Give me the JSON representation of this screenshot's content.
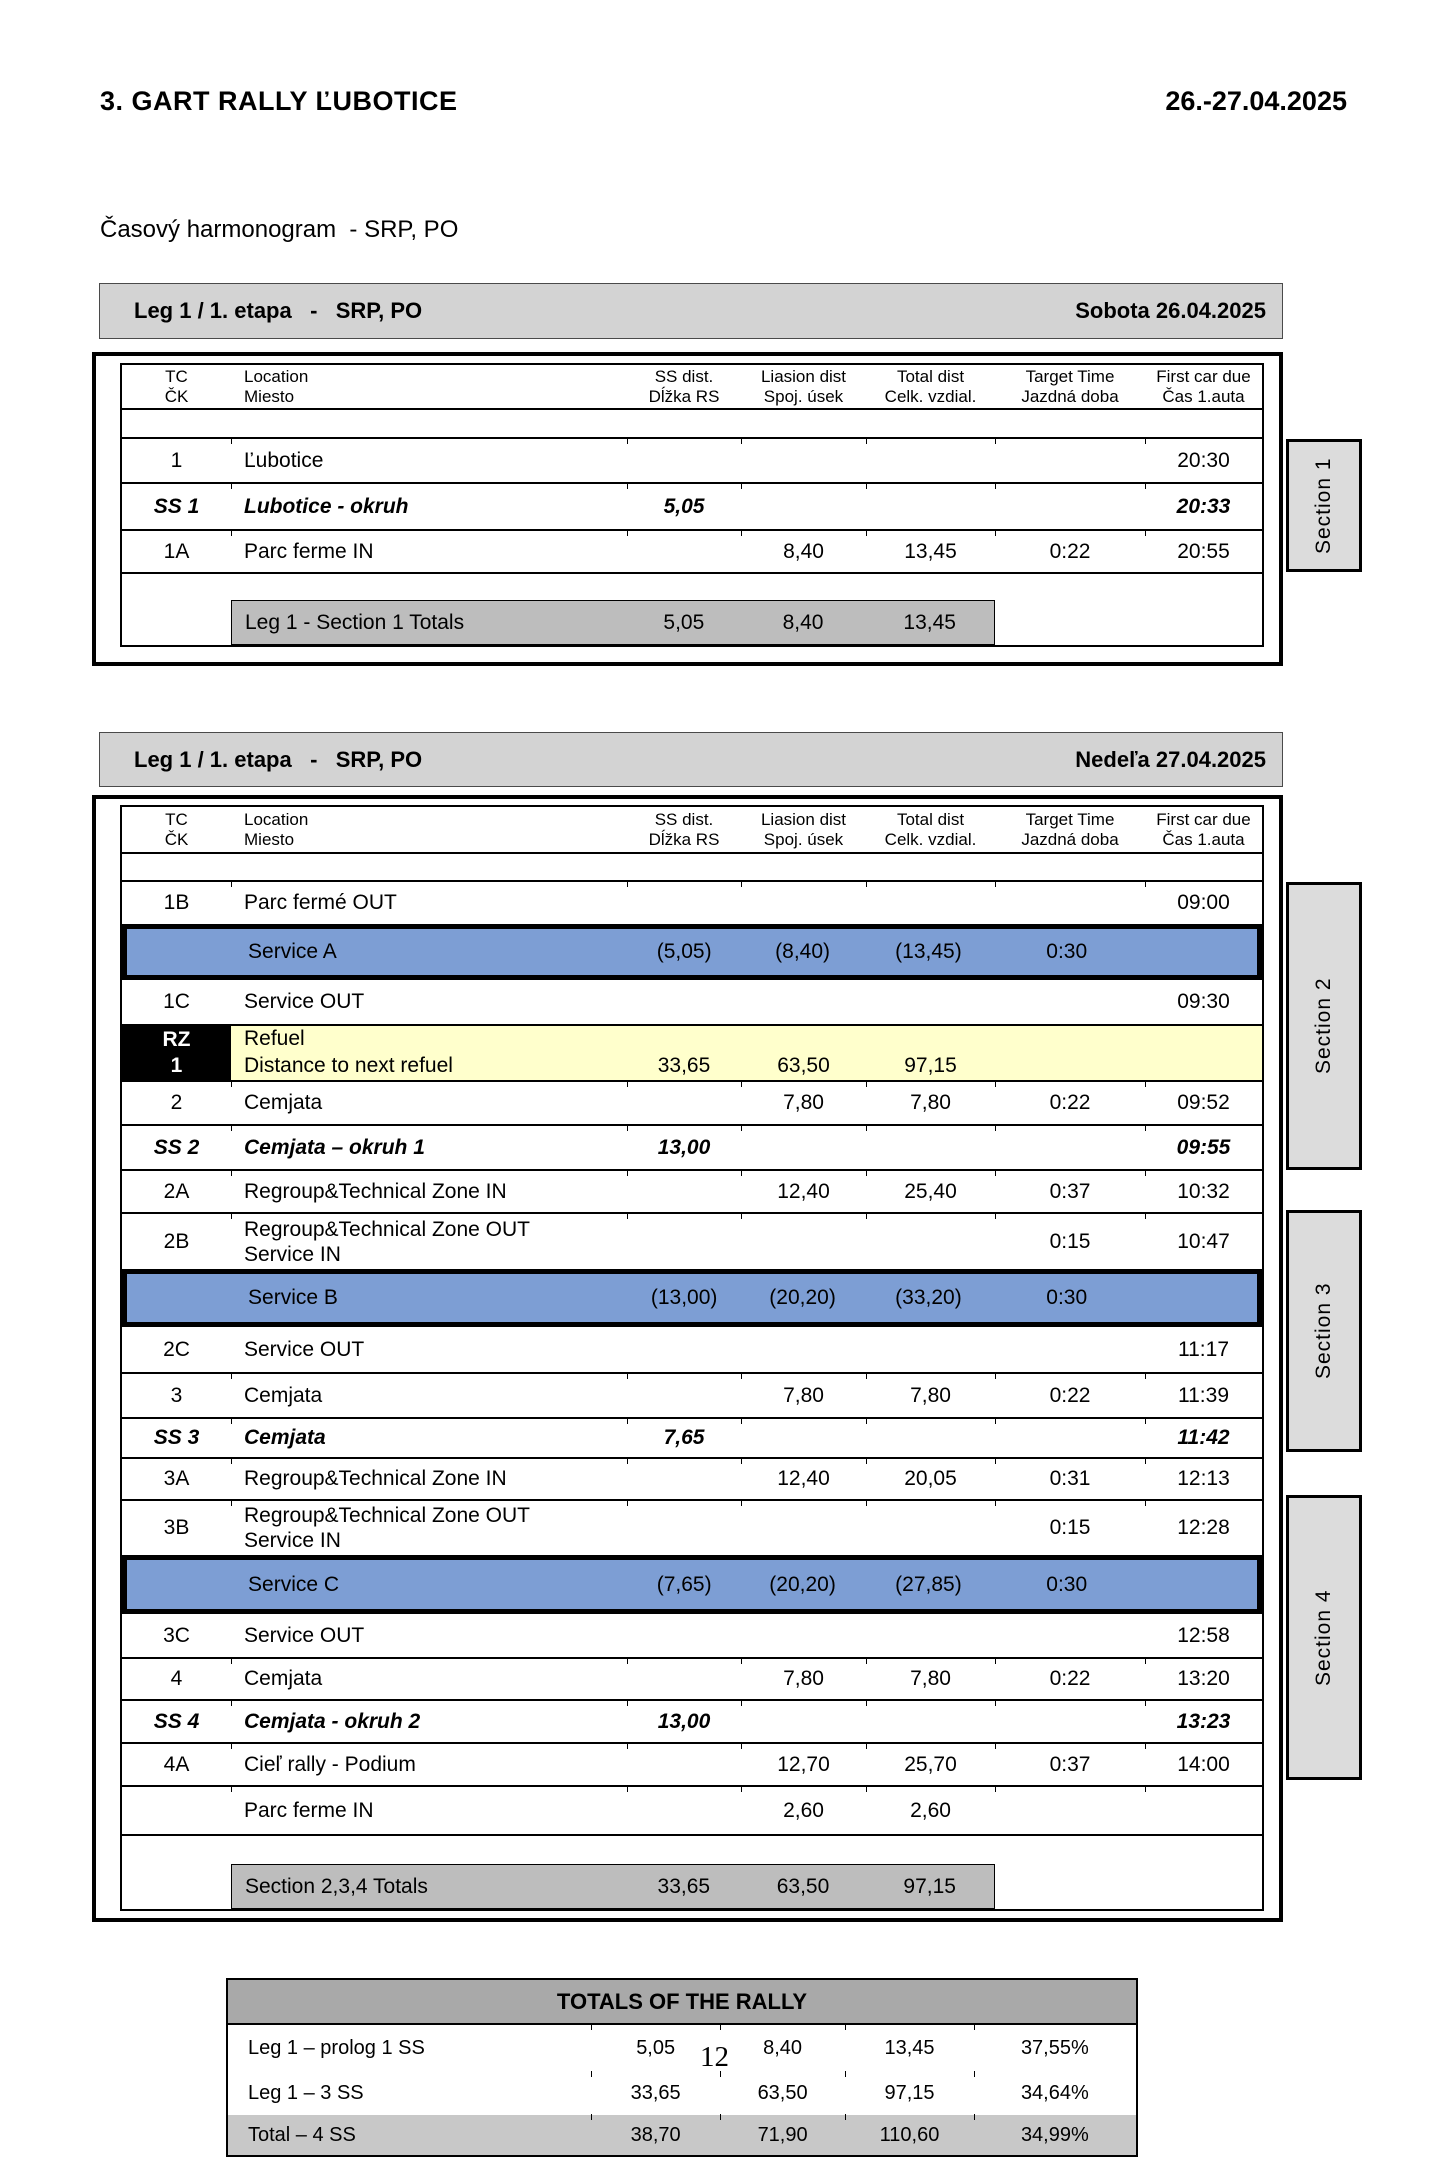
{
  "page": {
    "title": "3. GART RALLY ĽUBOTICE",
    "date_range": "26.-27.04.2025",
    "subtitle": "Časový harmonogram  - SRP, PO",
    "page_number": "12"
  },
  "columns": {
    "tc": [
      "TC",
      "ČK"
    ],
    "location": [
      "Location",
      "Miesto"
    ],
    "ss": [
      "SS dist.",
      "Dĺžka RS"
    ],
    "liaison": [
      "Liasion dist",
      "Spoj. úsek"
    ],
    "total": [
      "Total dist",
      "Celk. vzdial."
    ],
    "target": [
      "Target Time",
      "Jazdná doba"
    ],
    "first": [
      "First car due",
      "Čas 1.auta"
    ]
  },
  "legs": [
    {
      "bar_left": "Leg 1 / 1. etapa   -   SRP, PO",
      "bar_right": "Sobota 26.04.2025",
      "rows": [
        {
          "type": "normal",
          "tc": "1",
          "loc": "Ľubotice",
          "first": "20:30"
        },
        {
          "type": "ss",
          "tc": "SS 1",
          "loc": "Lubotice - okruh",
          "ss": "5,05",
          "first": "20:33"
        },
        {
          "type": "normal",
          "tc": "1A",
          "loc": "Parc ferme IN",
          "liaison": "8,40",
          "total": "13,45",
          "target": "0:22",
          "first": "20:55"
        }
      ],
      "totals": {
        "label": "Leg 1 - Section 1 Totals",
        "ss": "5,05",
        "liaison": "8,40",
        "total": "13,45"
      }
    },
    {
      "bar_left": "Leg 1 / 1. etapa   -   SRP, PO",
      "bar_right": "Nedeľa 27.04.2025",
      "rows": [
        {
          "type": "normal",
          "tc": "1B",
          "loc": "Parc fermé OUT",
          "first": "09:00"
        },
        {
          "type": "service",
          "loc": "Service A",
          "ss": "(5,05)",
          "liaison": "(8,40)",
          "total": "(13,45)",
          "target": "0:30"
        },
        {
          "type": "normal",
          "tc": "1C",
          "loc": "Service OUT",
          "first": "09:30"
        },
        {
          "type": "refuel",
          "tc": [
            "RZ",
            "1"
          ],
          "loc": [
            "Refuel",
            "Distance to next refuel"
          ],
          "ss": "33,65",
          "liaison": "63,50",
          "total": "97,15"
        },
        {
          "type": "normal",
          "tc": "2",
          "loc": "Cemjata",
          "liaison": "7,80",
          "total": "7,80",
          "target": "0:22",
          "first": "09:52"
        },
        {
          "type": "ss",
          "tc": "SS 2",
          "loc": "Cemjata – okruh 1",
          "ss": "13,00",
          "first": "09:55"
        },
        {
          "type": "normal",
          "tc": "2A",
          "loc": "Regroup&Technical Zone IN",
          "liaison": "12,40",
          "total": "25,40",
          "target": "0:37",
          "first": "10:32"
        },
        {
          "type": "normal",
          "tc": "2B",
          "loc": [
            "Regroup&Technical Zone OUT",
            "Service IN"
          ],
          "target": "0:15",
          "first": "10:47"
        },
        {
          "type": "service",
          "loc": "Service B",
          "ss": "(13,00)",
          "liaison": "(20,20)",
          "total": "(33,20)",
          "target": "0:30"
        },
        {
          "type": "normal",
          "tc": "2C",
          "loc": "Service OUT",
          "first": "11:17"
        },
        {
          "type": "normal",
          "tc": "3",
          "loc": "Cemjata",
          "liaison": "7,80",
          "total": "7,80",
          "target": "0:22",
          "first": "11:39"
        },
        {
          "type": "ss",
          "tc": "SS 3",
          "loc": "Cemjata",
          "ss": "7,65",
          "first": "11:42"
        },
        {
          "type": "normal",
          "tc": "3A",
          "loc": "Regroup&Technical Zone IN",
          "liaison": "12,40",
          "total": "20,05",
          "target": "0:31",
          "first": "12:13"
        },
        {
          "type": "normal",
          "tc": "3B",
          "loc": [
            "Regroup&Technical Zone OUT",
            "Service IN"
          ],
          "target": "0:15",
          "first": "12:28"
        },
        {
          "type": "service",
          "loc": "Service C",
          "ss": "(7,65)",
          "liaison": "(20,20)",
          "total": "(27,85)",
          "target": "0:30"
        },
        {
          "type": "normal",
          "tc": "3C",
          "loc": "Service OUT",
          "first": "12:58"
        },
        {
          "type": "normal",
          "tc": "4",
          "loc": "Cemjata",
          "liaison": "7,80",
          "total": "7,80",
          "target": "0:22",
          "first": "13:20"
        },
        {
          "type": "ss",
          "tc": "SS 4",
          "loc": "Cemjata - okruh 2",
          "ss": "13,00",
          "first": "13:23"
        },
        {
          "type": "normal",
          "tc": "4A",
          "loc": "Cieľ rally - Podium",
          "liaison": "12,70",
          "total": "25,70",
          "target": "0:37",
          "first": "14:00"
        },
        {
          "type": "normal",
          "tc": "",
          "loc": "Parc ferme IN",
          "liaison": "2,60",
          "total": "2,60"
        }
      ],
      "totals": {
        "label": "Section 2,3,4 Totals",
        "ss": "33,65",
        "liaison": "63,50",
        "total": "97,15"
      }
    }
  ],
  "section_tabs": [
    {
      "label": "Section 1"
    },
    {
      "label": "Section 2"
    },
    {
      "label": "Section 3"
    },
    {
      "label": "Section 4"
    }
  ],
  "rally_totals": {
    "title": "TOTALS OF THE RALLY",
    "rows": [
      {
        "label": "Leg 1 – prolog 1 SS",
        "v1": "5,05",
        "v2": "8,40",
        "v3": "13,45",
        "v4": "37,55%",
        "highlight": false
      },
      {
        "label": "Leg 1 – 3 SS",
        "v1": "33,65",
        "v2": "63,50",
        "v3": "97,15",
        "v4": "34,64%",
        "highlight": false
      },
      {
        "label": "Total – 4 SS",
        "v1": "38,70",
        "v2": "71,90",
        "v3": "110,60",
        "v4": "34,99%",
        "highlight": true
      }
    ]
  },
  "colors": {
    "service_row": "#7D9ED4",
    "refuel_row": "#FFFFCC",
    "header_bar": "#D3D3D3",
    "section_tab": "#DCDCDC",
    "leg_totals_box": "#BDBDBD",
    "rally_header": "#A9A9A9",
    "rally_total_row": "#C8C8C8"
  }
}
